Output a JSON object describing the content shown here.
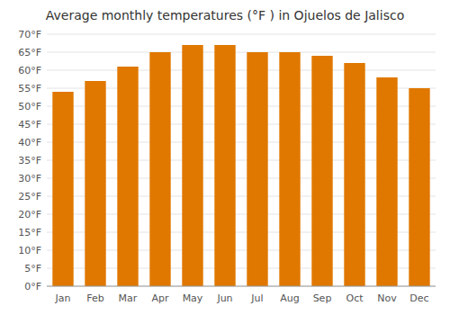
{
  "chart_data": {
    "type": "bar",
    "title": "Average monthly temperatures (°F ) in Ojuelos de Jalisco",
    "categories": [
      "Jan",
      "Feb",
      "Mar",
      "Apr",
      "May",
      "Jun",
      "Jul",
      "Aug",
      "Sep",
      "Oct",
      "Nov",
      "Dec"
    ],
    "values": [
      54,
      57,
      61,
      65,
      67,
      67,
      65,
      65,
      64,
      62,
      58,
      55
    ],
    "color": "#E07800",
    "ylim": [
      0,
      70
    ],
    "yticks": [
      {
        "value": 0,
        "label": "0°F"
      },
      {
        "value": 5,
        "label": "5°F"
      },
      {
        "value": 10,
        "label": "10°F"
      },
      {
        "value": 15,
        "label": "15°F"
      },
      {
        "value": 20,
        "label": "20°F"
      },
      {
        "value": 25,
        "label": "25°F"
      },
      {
        "value": 30,
        "label": "30°F"
      },
      {
        "value": 35,
        "label": "35°F"
      },
      {
        "value": 40,
        "label": "40°F"
      },
      {
        "value": 45,
        "label": "45°F"
      },
      {
        "value": 50,
        "label": "50°F"
      },
      {
        "value": 55,
        "label": "55°F"
      },
      {
        "value": 60,
        "label": "60°F"
      },
      {
        "value": 65,
        "label": "65°F"
      },
      {
        "value": 70,
        "label": "70°F"
      }
    ],
    "grid": true
  }
}
